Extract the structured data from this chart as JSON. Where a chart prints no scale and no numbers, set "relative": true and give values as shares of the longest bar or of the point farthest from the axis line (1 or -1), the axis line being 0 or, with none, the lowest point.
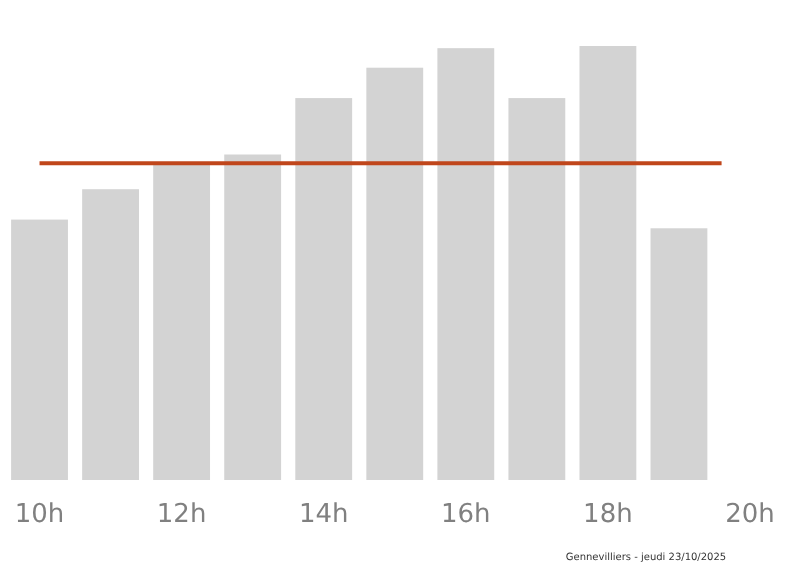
{
  "chart_data": {
    "type": "bar",
    "relative": true,
    "x": [
      10,
      11,
      12,
      13,
      14,
      15,
      16,
      17,
      18,
      19
    ],
    "values": [
      0.6,
      0.67,
      0.73,
      0.75,
      0.88,
      0.95,
      0.995,
      0.88,
      1,
      0.58
    ],
    "color": "#d3d3d3",
    "xlim": [
      9.5,
      20
    ],
    "xticks": [
      {
        "value": 10,
        "label": "10h"
      },
      {
        "value": 12,
        "label": "12h"
      },
      {
        "value": 14,
        "label": "14h"
      },
      {
        "value": 16,
        "label": "16h"
      },
      {
        "value": 18,
        "label": "18h"
      },
      {
        "value": 20,
        "label": "20h"
      }
    ],
    "ref_lines": [
      {
        "axis": "y",
        "value": 0.73,
        "color": "#c0461b"
      }
    ],
    "annotations": [
      "Gennevilliers - jeudi 23/10/2025"
    ],
    "tick_labels": "x"
  }
}
